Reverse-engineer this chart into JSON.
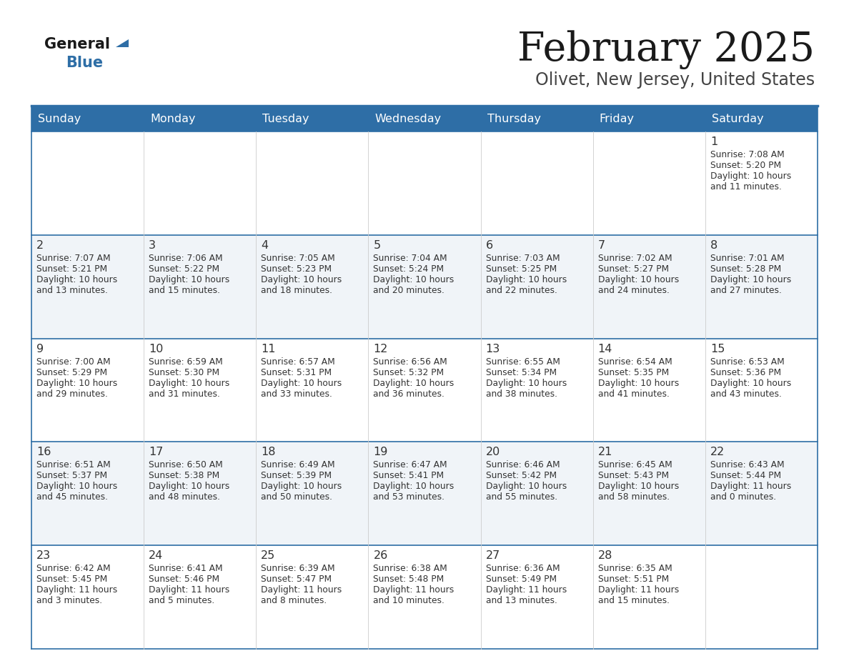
{
  "title": "February 2025",
  "subtitle": "Olivet, New Jersey, United States",
  "header_bg": "#2E6EA6",
  "header_text_color": "#FFFFFF",
  "cell_bg_light": "#F0F4F8",
  "cell_bg_white": "#FFFFFF",
  "border_color": "#2E6EA6",
  "text_color": "#333333",
  "days_of_week": [
    "Sunday",
    "Monday",
    "Tuesday",
    "Wednesday",
    "Thursday",
    "Friday",
    "Saturday"
  ],
  "calendar": [
    [
      {
        "day": null,
        "sunrise": null,
        "sunset": null,
        "daylight": null
      },
      {
        "day": null,
        "sunrise": null,
        "sunset": null,
        "daylight": null
      },
      {
        "day": null,
        "sunrise": null,
        "sunset": null,
        "daylight": null
      },
      {
        "day": null,
        "sunrise": null,
        "sunset": null,
        "daylight": null
      },
      {
        "day": null,
        "sunrise": null,
        "sunset": null,
        "daylight": null
      },
      {
        "day": null,
        "sunrise": null,
        "sunset": null,
        "daylight": null
      },
      {
        "day": 1,
        "sunrise": "7:08 AM",
        "sunset": "5:20 PM",
        "daylight": "10 hours\nand 11 minutes."
      }
    ],
    [
      {
        "day": 2,
        "sunrise": "7:07 AM",
        "sunset": "5:21 PM",
        "daylight": "10 hours\nand 13 minutes."
      },
      {
        "day": 3,
        "sunrise": "7:06 AM",
        "sunset": "5:22 PM",
        "daylight": "10 hours\nand 15 minutes."
      },
      {
        "day": 4,
        "sunrise": "7:05 AM",
        "sunset": "5:23 PM",
        "daylight": "10 hours\nand 18 minutes."
      },
      {
        "day": 5,
        "sunrise": "7:04 AM",
        "sunset": "5:24 PM",
        "daylight": "10 hours\nand 20 minutes."
      },
      {
        "day": 6,
        "sunrise": "7:03 AM",
        "sunset": "5:25 PM",
        "daylight": "10 hours\nand 22 minutes."
      },
      {
        "day": 7,
        "sunrise": "7:02 AM",
        "sunset": "5:27 PM",
        "daylight": "10 hours\nand 24 minutes."
      },
      {
        "day": 8,
        "sunrise": "7:01 AM",
        "sunset": "5:28 PM",
        "daylight": "10 hours\nand 27 minutes."
      }
    ],
    [
      {
        "day": 9,
        "sunrise": "7:00 AM",
        "sunset": "5:29 PM",
        "daylight": "10 hours\nand 29 minutes."
      },
      {
        "day": 10,
        "sunrise": "6:59 AM",
        "sunset": "5:30 PM",
        "daylight": "10 hours\nand 31 minutes."
      },
      {
        "day": 11,
        "sunrise": "6:57 AM",
        "sunset": "5:31 PM",
        "daylight": "10 hours\nand 33 minutes."
      },
      {
        "day": 12,
        "sunrise": "6:56 AM",
        "sunset": "5:32 PM",
        "daylight": "10 hours\nand 36 minutes."
      },
      {
        "day": 13,
        "sunrise": "6:55 AM",
        "sunset": "5:34 PM",
        "daylight": "10 hours\nand 38 minutes."
      },
      {
        "day": 14,
        "sunrise": "6:54 AM",
        "sunset": "5:35 PM",
        "daylight": "10 hours\nand 41 minutes."
      },
      {
        "day": 15,
        "sunrise": "6:53 AM",
        "sunset": "5:36 PM",
        "daylight": "10 hours\nand 43 minutes."
      }
    ],
    [
      {
        "day": 16,
        "sunrise": "6:51 AM",
        "sunset": "5:37 PM",
        "daylight": "10 hours\nand 45 minutes."
      },
      {
        "day": 17,
        "sunrise": "6:50 AM",
        "sunset": "5:38 PM",
        "daylight": "10 hours\nand 48 minutes."
      },
      {
        "day": 18,
        "sunrise": "6:49 AM",
        "sunset": "5:39 PM",
        "daylight": "10 hours\nand 50 minutes."
      },
      {
        "day": 19,
        "sunrise": "6:47 AM",
        "sunset": "5:41 PM",
        "daylight": "10 hours\nand 53 minutes."
      },
      {
        "day": 20,
        "sunrise": "6:46 AM",
        "sunset": "5:42 PM",
        "daylight": "10 hours\nand 55 minutes."
      },
      {
        "day": 21,
        "sunrise": "6:45 AM",
        "sunset": "5:43 PM",
        "daylight": "10 hours\nand 58 minutes."
      },
      {
        "day": 22,
        "sunrise": "6:43 AM",
        "sunset": "5:44 PM",
        "daylight": "11 hours\nand 0 minutes."
      }
    ],
    [
      {
        "day": 23,
        "sunrise": "6:42 AM",
        "sunset": "5:45 PM",
        "daylight": "11 hours\nand 3 minutes."
      },
      {
        "day": 24,
        "sunrise": "6:41 AM",
        "sunset": "5:46 PM",
        "daylight": "11 hours\nand 5 minutes."
      },
      {
        "day": 25,
        "sunrise": "6:39 AM",
        "sunset": "5:47 PM",
        "daylight": "11 hours\nand 8 minutes."
      },
      {
        "day": 26,
        "sunrise": "6:38 AM",
        "sunset": "5:48 PM",
        "daylight": "11 hours\nand 10 minutes."
      },
      {
        "day": 27,
        "sunrise": "6:36 AM",
        "sunset": "5:49 PM",
        "daylight": "11 hours\nand 13 minutes."
      },
      {
        "day": 28,
        "sunrise": "6:35 AM",
        "sunset": "5:51 PM",
        "daylight": "11 hours\nand 15 minutes."
      },
      {
        "day": null,
        "sunrise": null,
        "sunset": null,
        "daylight": null
      }
    ]
  ],
  "figsize": [
    11.88,
    9.18
  ],
  "dpi": 100
}
